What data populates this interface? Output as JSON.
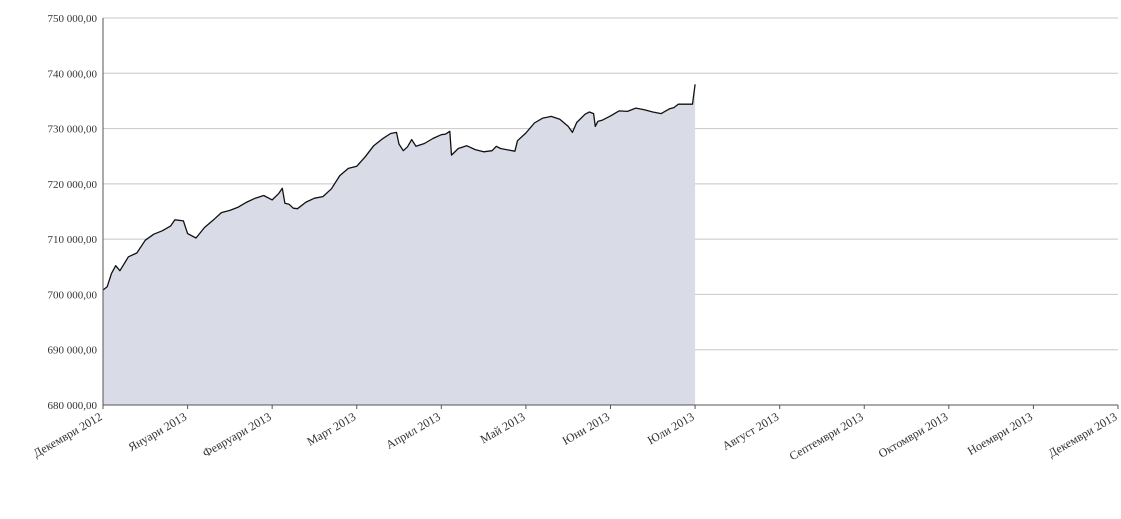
{
  "chart_data": {
    "type": "area",
    "title": "",
    "xlabel": "",
    "ylabel": "",
    "ylim": [
      680000,
      750000
    ],
    "yticks": [
      680000,
      690000,
      700000,
      710000,
      720000,
      730000,
      740000,
      750000
    ],
    "ytick_labels": [
      "680 000,00",
      "690 000,00",
      "700 000,00",
      "710 000,00",
      "720 000,00",
      "730 000,00",
      "740 000,00",
      "750 000,00"
    ],
    "xtick_labels": [
      "Декември 2012",
      "Януари 2013",
      "Февруари 2013",
      "Март 2013",
      "Април 2013",
      "Май 2013",
      "Юни 2013",
      "Юли 2013",
      "Август 2013",
      "Септември 2013",
      "Октомври 2013",
      "Ноември 2013",
      "Декември 2013"
    ],
    "grid": "horizontal",
    "fill_color": "#d9dce6",
    "line_color": "#111111",
    "series": [
      {
        "points": [
          [
            0,
            700800
          ],
          [
            0.05,
            701400
          ],
          [
            0.1,
            703800
          ],
          [
            0.15,
            705200
          ],
          [
            0.2,
            704300
          ],
          [
            0.3,
            706800
          ],
          [
            0.4,
            707500
          ],
          [
            0.5,
            709800
          ],
          [
            0.6,
            710900
          ],
          [
            0.7,
            711500
          ],
          [
            0.8,
            712400
          ],
          [
            0.85,
            713500
          ],
          [
            0.95,
            713300
          ],
          [
            1.0,
            711000
          ],
          [
            1.1,
            710200
          ],
          [
            1.2,
            712100
          ],
          [
            1.3,
            713400
          ],
          [
            1.4,
            714800
          ],
          [
            1.5,
            715200
          ],
          [
            1.6,
            715800
          ],
          [
            1.7,
            716700
          ],
          [
            1.8,
            717400
          ],
          [
            1.9,
            717900
          ],
          [
            2.0,
            717100
          ],
          [
            2.08,
            718300
          ],
          [
            2.12,
            719200
          ],
          [
            2.15,
            716500
          ],
          [
            2.2,
            716300
          ],
          [
            2.25,
            715600
          ],
          [
            2.3,
            715500
          ],
          [
            2.4,
            716700
          ],
          [
            2.5,
            717400
          ],
          [
            2.6,
            717700
          ],
          [
            2.7,
            719100
          ],
          [
            2.8,
            721500
          ],
          [
            2.9,
            722800
          ],
          [
            3.0,
            723200
          ],
          [
            3.1,
            724900
          ],
          [
            3.2,
            726900
          ],
          [
            3.3,
            728100
          ],
          [
            3.4,
            729100
          ],
          [
            3.47,
            729300
          ],
          [
            3.5,
            727200
          ],
          [
            3.55,
            726000
          ],
          [
            3.6,
            726700
          ],
          [
            3.65,
            728000
          ],
          [
            3.7,
            726800
          ],
          [
            3.8,
            727300
          ],
          [
            3.9,
            728200
          ],
          [
            4.0,
            728900
          ],
          [
            4.05,
            729000
          ],
          [
            4.1,
            729500
          ],
          [
            4.12,
            725200
          ],
          [
            4.2,
            726400
          ],
          [
            4.3,
            726900
          ],
          [
            4.4,
            726200
          ],
          [
            4.5,
            725800
          ],
          [
            4.6,
            726000
          ],
          [
            4.65,
            726800
          ],
          [
            4.7,
            726400
          ],
          [
            4.8,
            726100
          ],
          [
            4.87,
            725900
          ],
          [
            4.9,
            727800
          ],
          [
            5.0,
            729200
          ],
          [
            5.1,
            731000
          ],
          [
            5.2,
            731900
          ],
          [
            5.3,
            732200
          ],
          [
            5.4,
            731700
          ],
          [
            5.5,
            730400
          ],
          [
            5.55,
            729300
          ],
          [
            5.6,
            731100
          ],
          [
            5.7,
            732600
          ],
          [
            5.75,
            733000
          ],
          [
            5.8,
            732700
          ],
          [
            5.82,
            730400
          ],
          [
            5.85,
            731300
          ],
          [
            5.9,
            731500
          ],
          [
            6.0,
            732300
          ],
          [
            6.1,
            733200
          ],
          [
            6.2,
            733100
          ],
          [
            6.3,
            733700
          ],
          [
            6.4,
            733400
          ],
          [
            6.5,
            733000
          ],
          [
            6.6,
            732700
          ],
          [
            6.7,
            733600
          ],
          [
            6.75,
            733800
          ],
          [
            6.8,
            734400
          ],
          [
            6.85,
            734400
          ],
          [
            6.9,
            734400
          ],
          [
            6.97,
            734400
          ],
          [
            7.0,
            738000
          ]
        ]
      }
    ]
  }
}
